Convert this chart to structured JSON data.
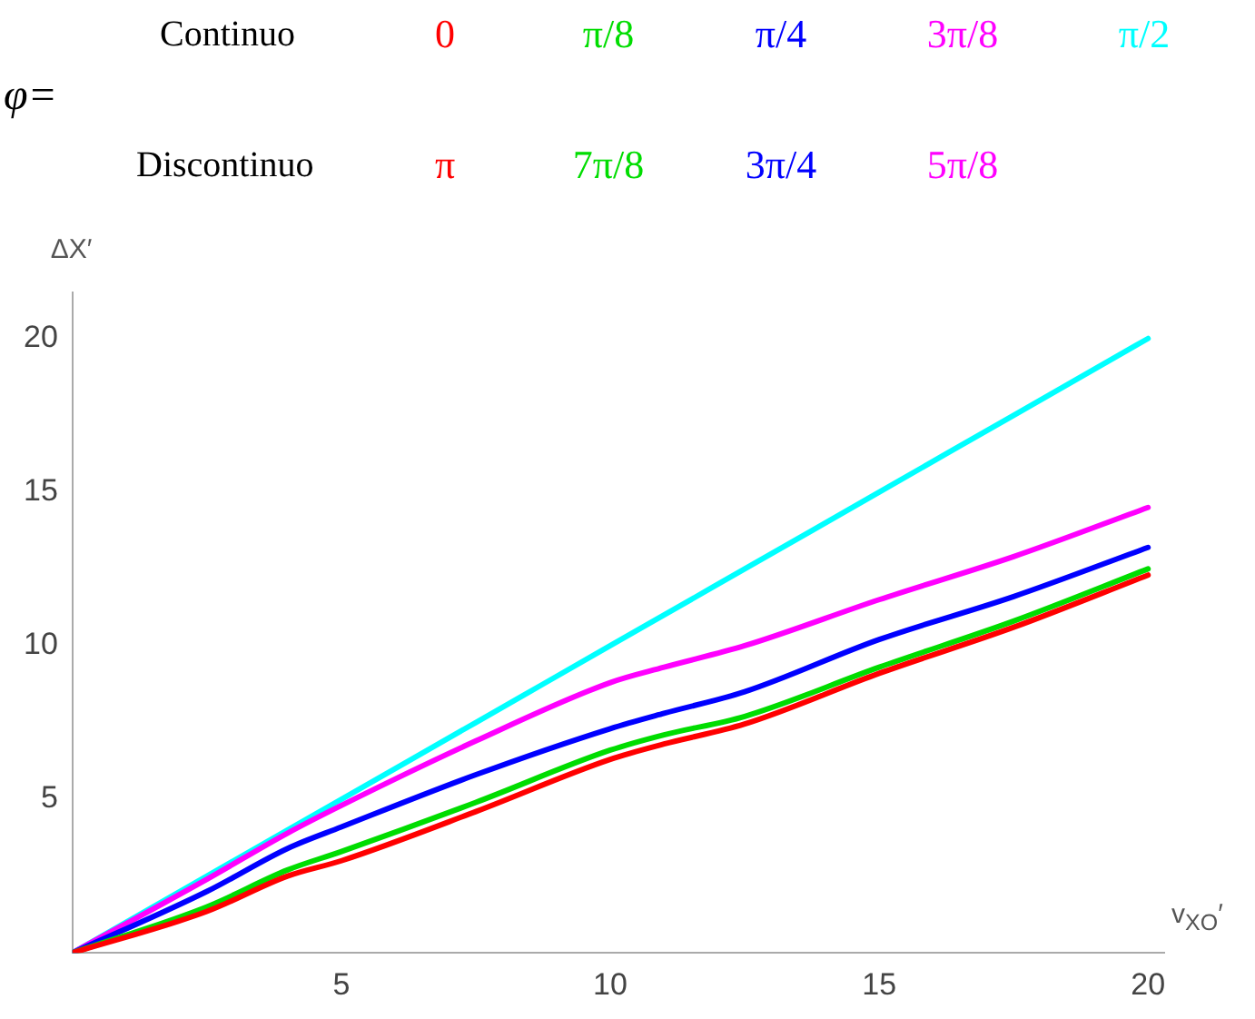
{
  "chart_data": {
    "type": "line",
    "xlabel": "v$_{XO}$′",
    "ylabel": "ΔX′",
    "legend_title": "φ=",
    "legend": "top",
    "annotations": [
      "Continuo",
      "Discontinuo",
      "π",
      "7π/8",
      "3π/4",
      "5π/8"
    ],
    "x": [
      0,
      2.5,
      4,
      5,
      7.5,
      10,
      11,
      12.5,
      15,
      17.5,
      20
    ],
    "series": [
      {
        "name": "0",
        "color": "#ff0000",
        "values": [
          0,
          1.35,
          2.5,
          3.0,
          4.6,
          6.3,
          6.8,
          7.45,
          9.1,
          10.6,
          12.3
        ]
      },
      {
        "name": "π/8",
        "color": "#00dd00",
        "values": [
          0,
          1.5,
          2.7,
          3.3,
          4.9,
          6.6,
          7.1,
          7.7,
          9.3,
          10.8,
          12.5
        ]
      },
      {
        "name": "π/4",
        "color": "#0000ff",
        "values": [
          0,
          2.0,
          3.4,
          4.1,
          5.8,
          7.3,
          7.8,
          8.5,
          10.2,
          11.6,
          13.2
        ]
      },
      {
        "name": "3π/8",
        "color": "#ff00ff",
        "values": [
          0,
          2.4,
          3.9,
          4.8,
          6.9,
          8.8,
          9.3,
          10.0,
          11.5,
          12.9,
          14.5
        ]
      },
      {
        "name": "π/2",
        "color": "#00ffff",
        "values": [
          0,
          2.5,
          4.0,
          5.0,
          7.5,
          10.0,
          11.0,
          12.5,
          15.0,
          17.5,
          20.0
        ]
      }
    ],
    "xlim": [
      0,
      20.3
    ],
    "xticks": [
      5,
      10,
      15,
      20
    ],
    "ylim": [
      0,
      21.5
    ],
    "yticks": [
      5,
      10,
      15,
      20
    ],
    "grid": false,
    "marker": "none",
    "line_style": "solid"
  }
}
